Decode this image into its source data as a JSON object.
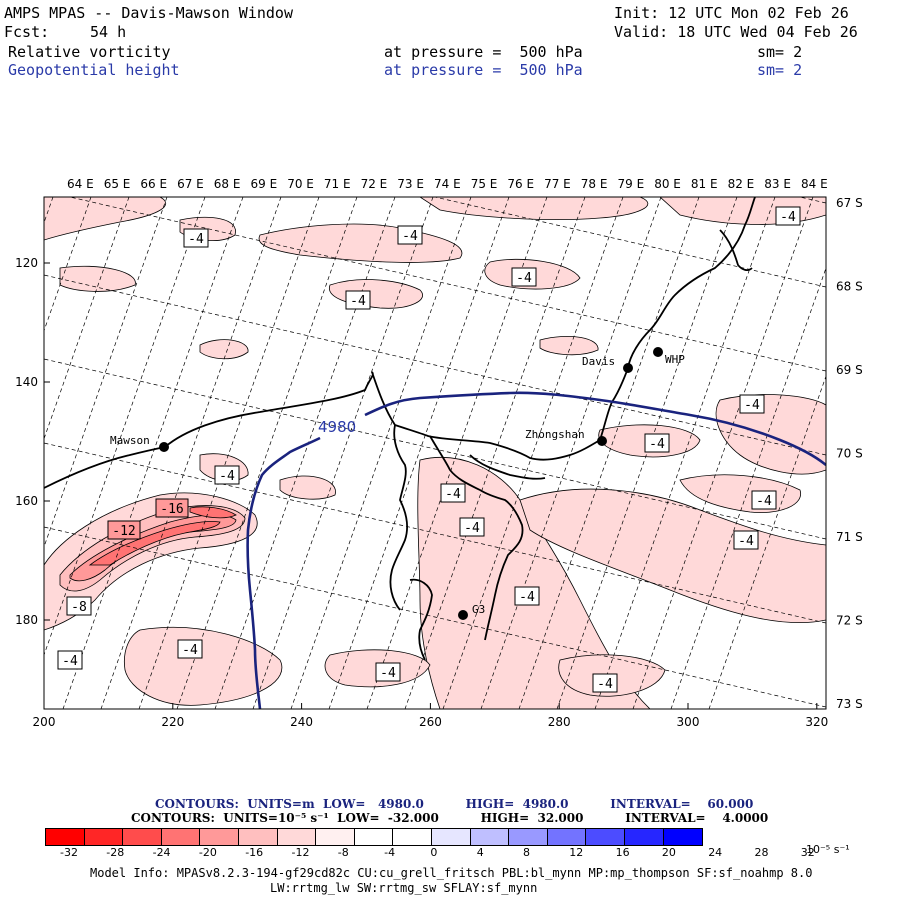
{
  "header": {
    "title": "AMPS MPAS -- Davis-Mawson Window",
    "init": "Init: 12 UTC Mon 02 Feb 26",
    "fcst_label": "Fcst:",
    "fcst_value": "54 h",
    "valid": "Valid: 18 UTC Wed 04 Feb 26",
    "field1": "Relative vorticity",
    "field1_level": "at pressure =  500 hPa",
    "field1_sm": "sm= 2",
    "field2": "Geopotential height",
    "field2_level": "at pressure =  500 hPa",
    "field2_sm": "sm= 2"
  },
  "top_longitudes": [
    "64 E",
    "65 E",
    "66 E",
    "67 E",
    "68 E",
    "69 E",
    "70 E",
    "71 E",
    "72 E",
    "73 E",
    "74 E",
    "75 E",
    "76 E",
    "77 E",
    "78 E",
    "79 E",
    "80 E",
    "81 E",
    "82 E",
    "83 E",
    "84 E"
  ],
  "right_latitudes": [
    "67 S",
    "68 S",
    "69 S",
    "70 S",
    "71 S",
    "72 S",
    "73 S"
  ],
  "x_ticks": [
    "200",
    "220",
    "240",
    "260",
    "280",
    "300",
    "320"
  ],
  "y_ticks": [
    "120",
    "140",
    "160",
    "180"
  ],
  "stations": [
    "Mawson",
    "Davis",
    "WHP",
    "Zhongshan",
    "G3"
  ],
  "height_contour_label": "4980",
  "vort_labels": {
    "m4": "-4",
    "m8": "-8",
    "m12": "-12",
    "m16": "-16"
  },
  "contours_height": "CONTOURS:  UNITS=m  LOW=   4980.0          HIGH=  4980.0          INTERVAL=    60.000",
  "contours_vort": "CONTOURS:  UNITS=10⁻⁵ s⁻¹  LOW=  -32.000          HIGH=  32.000          INTERVAL=    4.0000",
  "colorbar": {
    "ticks": [
      "-32",
      "-28",
      "-24",
      "-20",
      "-16",
      "-12",
      "-8",
      "-4",
      "0",
      "4",
      "8",
      "12",
      "16",
      "20",
      "24",
      "28",
      "32"
    ],
    "unit": "10⁻⁵ s⁻¹",
    "colors": [
      "#ff0000",
      "#ff2626",
      "#ff4c4c",
      "#ff7373",
      "#ff9999",
      "#ffbfbf",
      "#ffd9d9",
      "#fff0f0",
      "#ffffff",
      "#ffffff",
      "#e6e6ff",
      "#bfbfff",
      "#9999ff",
      "#7373ff",
      "#4c4cff",
      "#2626ff",
      "#0000ff"
    ]
  },
  "footer": {
    "line1": "Model Info: MPASv8.2.3-194-gf29cd82c CU:cu_grell_fritsch PBL:bl_mynn MP:mp_thompson SF:sf_noahmp 8.0",
    "line2": "LW:rrtmg_lw SW:rrtmg_sw SFLAY:sf_mynn"
  }
}
